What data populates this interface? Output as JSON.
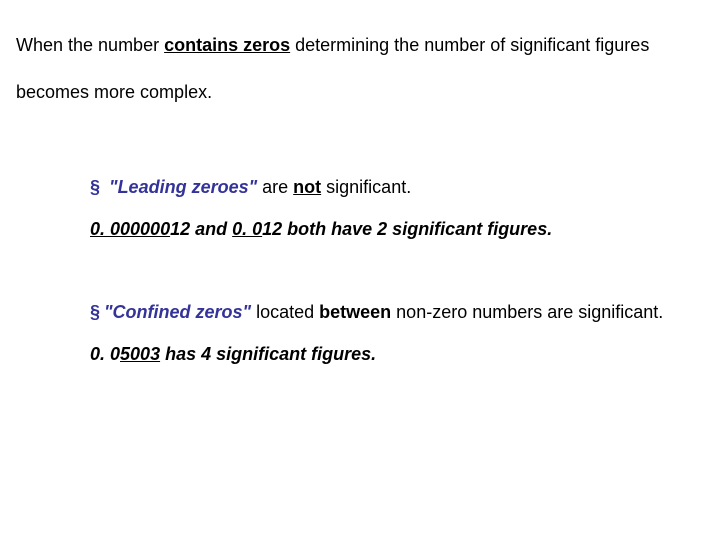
{
  "colors": {
    "accent": "#333399",
    "text": "#000000",
    "background": "#ffffff"
  },
  "typography": {
    "font_family": "Arial",
    "base_fontsize_pt": 14,
    "line_spacing_intro": 2.6
  },
  "intro": {
    "pre": "When the number ",
    "emph": "contains zeros",
    "post": " determining the number of significant figures becomes more complex."
  },
  "bullet1": {
    "marker": "§",
    "t1": "\"Leading zeroes\"",
    "t2": " are ",
    "t3": "not",
    "t4": " significant."
  },
  "example1": {
    "u1": "0. 000000",
    "p1": "12 and ",
    "u2": "0. 0",
    "p2": "12 both have 2 significant figures."
  },
  "bullet2": {
    "marker": "§",
    "t1": "\"Confined zeros\"",
    "t2": " located ",
    "t3": "between",
    "t4": " non-zero numbers are significant."
  },
  "example2": {
    "p1": "0. 0",
    "u1": "5003",
    "p2": " has 4 significant figures."
  }
}
